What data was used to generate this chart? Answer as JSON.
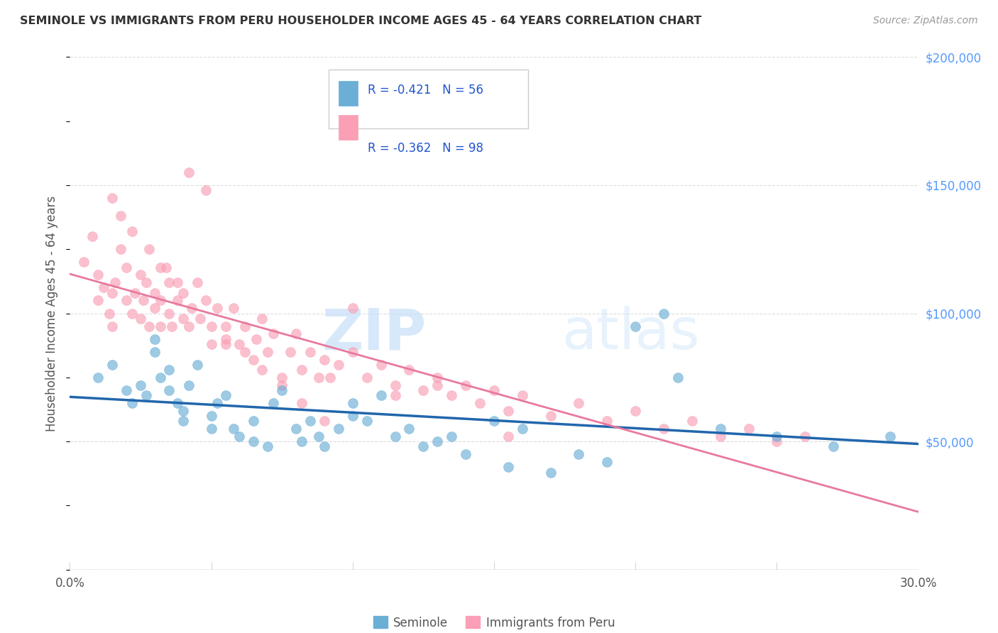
{
  "title": "SEMINOLE VS IMMIGRANTS FROM PERU HOUSEHOLDER INCOME AGES 45 - 64 YEARS CORRELATION CHART",
  "source": "Source: ZipAtlas.com",
  "ylabel": "Householder Income Ages 45 - 64 years",
  "legend_label_blue": "Seminole",
  "legend_label_pink": "Immigrants from Peru",
  "legend_r_blue": "R = -0.421",
  "legend_n_blue": "N = 56",
  "legend_r_pink": "R = -0.362",
  "legend_n_pink": "N = 98",
  "x_min": 0.0,
  "x_max": 0.3,
  "y_min": 0,
  "y_max": 200000,
  "x_ticks": [
    0.0,
    0.05,
    0.1,
    0.15,
    0.2,
    0.25,
    0.3
  ],
  "y_ticks_right": [
    0,
    50000,
    100000,
    150000,
    200000
  ],
  "color_blue": "#6baed6",
  "color_pink": "#fa9fb5",
  "color_blue_line": "#2166ac",
  "color_pink_line": "#e8799e",
  "watermark_zip": "ZIP",
  "watermark_atlas": "atlas",
  "seminole_x": [
    0.01,
    0.015,
    0.02,
    0.022,
    0.025,
    0.027,
    0.03,
    0.03,
    0.032,
    0.035,
    0.035,
    0.038,
    0.04,
    0.04,
    0.042,
    0.045,
    0.05,
    0.05,
    0.052,
    0.055,
    0.058,
    0.06,
    0.065,
    0.065,
    0.07,
    0.072,
    0.075,
    0.08,
    0.082,
    0.085,
    0.088,
    0.09,
    0.095,
    0.1,
    0.1,
    0.105,
    0.11,
    0.115,
    0.12,
    0.125,
    0.13,
    0.135,
    0.14,
    0.15,
    0.155,
    0.16,
    0.17,
    0.18,
    0.19,
    0.2,
    0.21,
    0.215,
    0.23,
    0.25,
    0.27,
    0.29
  ],
  "seminole_y": [
    75000,
    80000,
    70000,
    65000,
    72000,
    68000,
    90000,
    85000,
    75000,
    78000,
    70000,
    65000,
    62000,
    58000,
    72000,
    80000,
    55000,
    60000,
    65000,
    68000,
    55000,
    52000,
    58000,
    50000,
    48000,
    65000,
    70000,
    55000,
    50000,
    58000,
    52000,
    48000,
    55000,
    65000,
    60000,
    58000,
    68000,
    52000,
    55000,
    48000,
    50000,
    52000,
    45000,
    58000,
    40000,
    55000,
    38000,
    45000,
    42000,
    95000,
    100000,
    75000,
    55000,
    52000,
    48000,
    52000
  ],
  "peru_x": [
    0.005,
    0.008,
    0.01,
    0.01,
    0.012,
    0.014,
    0.015,
    0.015,
    0.016,
    0.018,
    0.02,
    0.02,
    0.022,
    0.023,
    0.025,
    0.025,
    0.026,
    0.027,
    0.028,
    0.03,
    0.03,
    0.032,
    0.032,
    0.034,
    0.035,
    0.035,
    0.036,
    0.038,
    0.04,
    0.04,
    0.042,
    0.043,
    0.045,
    0.046,
    0.048,
    0.05,
    0.05,
    0.052,
    0.055,
    0.055,
    0.058,
    0.06,
    0.062,
    0.065,
    0.066,
    0.068,
    0.07,
    0.072,
    0.075,
    0.078,
    0.08,
    0.082,
    0.085,
    0.088,
    0.09,
    0.092,
    0.095,
    0.1,
    0.105,
    0.11,
    0.115,
    0.12,
    0.125,
    0.13,
    0.135,
    0.14,
    0.145,
    0.15,
    0.155,
    0.16,
    0.17,
    0.18,
    0.19,
    0.2,
    0.21,
    0.22,
    0.23,
    0.24,
    0.25,
    0.26,
    0.015,
    0.018,
    0.022,
    0.028,
    0.032,
    0.038,
    0.042,
    0.048,
    0.055,
    0.062,
    0.068,
    0.075,
    0.082,
    0.09,
    0.1,
    0.115,
    0.13,
    0.155
  ],
  "peru_y": [
    120000,
    130000,
    105000,
    115000,
    110000,
    100000,
    108000,
    95000,
    112000,
    125000,
    105000,
    118000,
    100000,
    108000,
    115000,
    98000,
    105000,
    112000,
    95000,
    102000,
    108000,
    95000,
    105000,
    118000,
    100000,
    112000,
    95000,
    105000,
    98000,
    108000,
    95000,
    102000,
    112000,
    98000,
    105000,
    88000,
    95000,
    102000,
    88000,
    95000,
    102000,
    88000,
    95000,
    82000,
    90000,
    98000,
    85000,
    92000,
    75000,
    85000,
    92000,
    78000,
    85000,
    75000,
    82000,
    75000,
    80000,
    85000,
    75000,
    80000,
    72000,
    78000,
    70000,
    75000,
    68000,
    72000,
    65000,
    70000,
    62000,
    68000,
    60000,
    65000,
    58000,
    62000,
    55000,
    58000,
    52000,
    55000,
    50000,
    52000,
    145000,
    138000,
    132000,
    125000,
    118000,
    112000,
    155000,
    148000,
    90000,
    85000,
    78000,
    72000,
    65000,
    58000,
    102000,
    68000,
    72000,
    52000
  ]
}
